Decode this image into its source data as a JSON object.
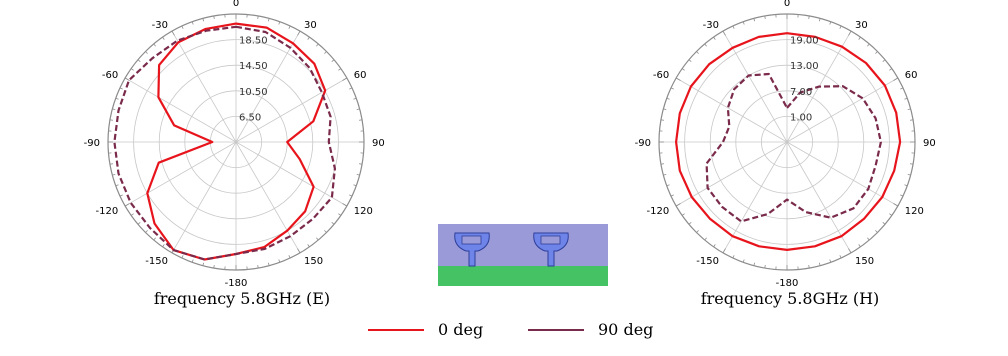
{
  "colors": {
    "deg0": "#e8141c",
    "deg90": "#7a2a4a",
    "grid": "#c8c8c8",
    "axis": "#8c8c8c"
  },
  "legend": [
    {
      "label": "0 deg",
      "color": "#e8141c"
    },
    {
      "label": "90 deg",
      "color": "#7a2a4a"
    }
  ],
  "chart_data": [
    {
      "type": "polar-line",
      "caption": "frequency 5.8GHz (E)",
      "angle_labels": [
        "0",
        "30",
        "60",
        "90",
        "120",
        "150",
        "-180",
        "-150",
        "-120",
        "-90",
        "-60",
        "-30"
      ],
      "radial_labels": [
        "6.50",
        "10.50",
        "14.50",
        "18.50"
      ],
      "rlim": [
        2.5,
        22.5
      ],
      "series": [
        {
          "name": "0 deg",
          "style": "solid",
          "theta": [
            0,
            15,
            30,
            45,
            60,
            75,
            90,
            105,
            120,
            135,
            150,
            165,
            180,
            195,
            210,
            225,
            240,
            255,
            270,
            285,
            300,
            315,
            330,
            345
          ],
          "r": [
            21.0,
            21.0,
            20.3,
            19.8,
            18.6,
            15.0,
            10.5,
            12.8,
            16.5,
            17.8,
            18.5,
            19.5,
            20.0,
            21.5,
            22.0,
            20.5,
            18.5,
            15.0,
            6.2,
            12.5,
            16.5,
            19.5,
            20.5,
            20.8
          ]
        },
        {
          "name": "90 deg",
          "style": "dashed",
          "theta": [
            0,
            15,
            30,
            45,
            60,
            75,
            90,
            105,
            120,
            135,
            150,
            165,
            180,
            195,
            210,
            225,
            240,
            255,
            270,
            285,
            300,
            315,
            330,
            345
          ],
          "r": [
            20.5,
            20.3,
            19.5,
            18.8,
            18.0,
            17.8,
            17.0,
            18.5,
            19.8,
            19.5,
            19.5,
            19.8,
            20.0,
            21.5,
            22.0,
            21.5,
            21.5,
            21.5,
            21.5,
            21.5,
            21.8,
            21.0,
            20.8,
            20.5
          ]
        }
      ]
    },
    {
      "type": "polar-line",
      "caption": "frequency 5.8GHz (H)",
      "angle_labels": [
        "0",
        "30",
        "60",
        "90",
        "120",
        "150",
        "-180",
        "-150",
        "-120",
        "-90",
        "-60",
        "-30"
      ],
      "radial_labels": [
        "1.00",
        "7.00",
        "13.00",
        "19.00"
      ],
      "rlim": [
        -5,
        25
      ],
      "series": [
        {
          "name": "0 deg",
          "style": "solid",
          "theta": [
            0,
            15,
            30,
            45,
            60,
            75,
            90,
            105,
            120,
            135,
            150,
            165,
            180,
            195,
            210,
            225,
            240,
            255,
            270,
            285,
            300,
            315,
            330,
            345
          ],
          "r": [
            20.5,
            20.5,
            20.8,
            21.2,
            21.5,
            21.5,
            21.5,
            21.0,
            20.8,
            20.5,
            20.5,
            20.3,
            20.3,
            20.3,
            20.5,
            20.5,
            20.8,
            21.0,
            21.0,
            21.0,
            21.0,
            20.8,
            20.5,
            20.5
          ]
        },
        {
          "name": "90 deg",
          "style": "dashed",
          "theta": [
            0,
            15,
            30,
            45,
            60,
            75,
            90,
            105,
            120,
            135,
            150,
            165,
            180,
            195,
            210,
            225,
            240,
            255,
            270,
            285,
            300,
            315,
            330,
            345
          ],
          "r": [
            3.0,
            7.0,
            10.0,
            13.5,
            15.5,
            16.5,
            17.0,
            16.5,
            17.0,
            17.0,
            15.5,
            12.0,
            8.5,
            12.5,
            16.5,
            16.5,
            16.5,
            14.5,
            10.0,
            9.0,
            11.0,
            12.5,
            13.0,
            11.5
          ]
        }
      ]
    }
  ]
}
